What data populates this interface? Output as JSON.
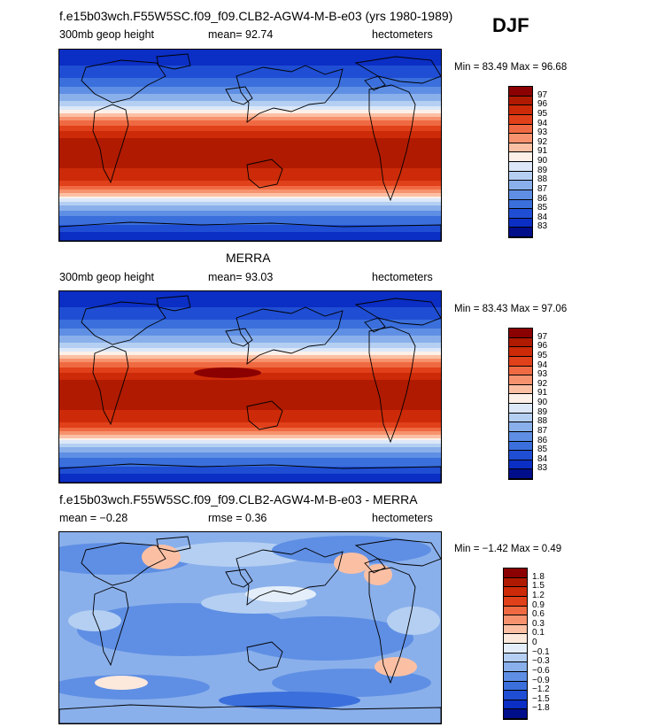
{
  "season": "DJF",
  "panels": [
    {
      "title": "f.e15b03wch.F55W5SC.f09_f09.CLB2-AGW4-M-B-e03 (yrs 1980-1989)",
      "left_label": "300mb geop height",
      "center_label": "mean=  92.74",
      "right_label": "hectometers",
      "minmax": "Min =  83.49 Max =  96.68",
      "kind": "abs"
    },
    {
      "title": "MERRA",
      "left_label": "300mb geop height",
      "center_label": "mean=  93.03",
      "right_label": "hectometers",
      "minmax": "Min =  83.43 Max =  97.06",
      "kind": "abs"
    },
    {
      "title": "f.e15b03wch.F55W5SC.f09_f09.CLB2-AGW4-M-B-e03 - MERRA",
      "left_label": "mean =  −0.28",
      "center_label": "rmse =   0.36",
      "right_label": "hectometers",
      "minmax": "Min =  −1.42 Max =   0.49",
      "kind": "diff"
    }
  ],
  "chart_data": [
    {
      "type": "heatmap",
      "title": "f.e15b03wch.F55W5SC.f09_f09.CLB2-AGW4-M-B-e03 (yrs 1980-1989)",
      "variable": "300mb geop height",
      "units": "hectometers",
      "mean": 92.74,
      "min": 83.49,
      "max": 96.68,
      "colorbar_levels": [
        "97",
        "96",
        "95",
        "94",
        "93",
        "92",
        "91",
        "90",
        "89",
        "88",
        "87",
        "86",
        "85",
        "84",
        "83"
      ],
      "colors": [
        "#8b0000",
        "#b01a00",
        "#cc2a08",
        "#e0401a",
        "#ef6a42",
        "#f6926e",
        "#fbc0a4",
        "#fdf0e8",
        "#dce8f8",
        "#b4cff2",
        "#8ab0eb",
        "#5f8fe4",
        "#3a6fdc",
        "#1f4ed4",
        "#0b2ec4",
        "#000e8a"
      ]
    },
    {
      "type": "heatmap",
      "title": "MERRA",
      "variable": "300mb geop height",
      "units": "hectometers",
      "mean": 93.03,
      "min": 83.43,
      "max": 97.06,
      "colorbar_levels": [
        "97",
        "96",
        "95",
        "94",
        "93",
        "92",
        "91",
        "90",
        "89",
        "88",
        "87",
        "86",
        "85",
        "84",
        "83"
      ],
      "colors": [
        "#8b0000",
        "#b01a00",
        "#cc2a08",
        "#e0401a",
        "#ef6a42",
        "#f6926e",
        "#fbc0a4",
        "#fdf0e8",
        "#dce8f8",
        "#b4cff2",
        "#8ab0eb",
        "#5f8fe4",
        "#3a6fdc",
        "#1f4ed4",
        "#0b2ec4",
        "#000e8a"
      ]
    },
    {
      "type": "heatmap",
      "title": "f.e15b03wch.F55W5SC.f09_f09.CLB2-AGW4-M-B-e03 - MERRA",
      "units": "hectometers",
      "mean": -0.28,
      "rmse": 0.36,
      "min": -1.42,
      "max": 0.49,
      "colorbar_levels": [
        "1.8",
        "1.5",
        "1.2",
        "0.9",
        "0.6",
        "0.3",
        "0.1",
        "0",
        "−0.1",
        "−0.3",
        "−0.6",
        "−0.9",
        "−1.2",
        "−1.5",
        "−1.8"
      ],
      "colors": [
        "#8b0000",
        "#b01a00",
        "#cc2a08",
        "#e0401a",
        "#ef6a42",
        "#f6926e",
        "#fbc0a4",
        "#fde8dc",
        "#e4eefa",
        "#b4cff2",
        "#8ab0eb",
        "#5f8fe4",
        "#3a6fdc",
        "#1f4ed4",
        "#0b2ec4",
        "#000e8a"
      ]
    }
  ]
}
